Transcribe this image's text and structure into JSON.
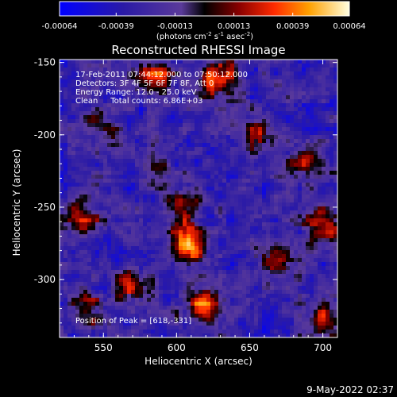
{
  "chart_data": {
    "type": "heatmap",
    "title": "Reconstructed RHESSI Image",
    "xlabel": "Heliocentric X (arcsec)",
    "ylabel": "Heliocentric Y (arcsec)",
    "xlim": [
      520,
      710
    ],
    "ylim": [
      -340,
      -148
    ],
    "x_ticks": [
      "550",
      "600",
      "650",
      "700"
    ],
    "x_tick_values": [
      550,
      600,
      650,
      700
    ],
    "y_ticks": [
      "-150",
      "-200",
      "-250",
      "-300"
    ],
    "y_tick_values": [
      -150,
      -200,
      -250,
      -300
    ],
    "colorbar": {
      "min": -0.00064,
      "max": 0.00064,
      "tick_labels": [
        "-0.00064",
        "-0.00039",
        "-0.00013",
        "0.00013",
        "0.00039",
        "0.00064"
      ],
      "tick_values": [
        -0.00064,
        -0.00039,
        -0.00013,
        0.00013,
        0.00039,
        0.00064
      ],
      "unit_label": "(photons cm",
      "unit_sup1": "-2",
      "unit_mid": " s",
      "unit_sup2": "-1",
      "unit_mid2": " asec",
      "unit_sup3": "-2",
      "unit_end": ")"
    },
    "annotations": {
      "time": "17-Feb-2011 07:44:12.000 to 07:50:12.000",
      "detectors": "Detectors: 3F 4F 5F 6F 7F 8F, Att 0",
      "energy": "Energy Range: 12.0 - 25.0 keV",
      "clean": "Clean     Total counts: 6.86E+03",
      "peak": "Position of Peak = [618,-331]"
    },
    "peak_position": [
      618,
      -331
    ],
    "sources": [
      {
        "x": 607,
        "y": -277,
        "intensity": 1.0
      },
      {
        "x": 630,
        "y": -162,
        "intensity": 0.95
      },
      {
        "x": 618,
        "y": -318,
        "intensity": 0.85
      },
      {
        "x": 586,
        "y": -160,
        "intensity": 0.7
      },
      {
        "x": 690,
        "y": -220,
        "intensity": 0.7
      },
      {
        "x": 700,
        "y": -262,
        "intensity": 0.75
      },
      {
        "x": 535,
        "y": -255,
        "intensity": 0.7
      },
      {
        "x": 568,
        "y": -305,
        "intensity": 0.6
      },
      {
        "x": 605,
        "y": -250,
        "intensity": 0.7
      },
      {
        "x": 668,
        "y": -285,
        "intensity": 0.6
      },
      {
        "x": 655,
        "y": -200,
        "intensity": 0.55
      },
      {
        "x": 548,
        "y": -190,
        "intensity": 0.5
      },
      {
        "x": 700,
        "y": -325,
        "intensity": 0.55
      },
      {
        "x": 538,
        "y": -322,
        "intensity": 0.5
      },
      {
        "x": 585,
        "y": -225,
        "intensity": 0.5
      }
    ]
  },
  "footer": {
    "date": "9-May-2022 02:37"
  }
}
